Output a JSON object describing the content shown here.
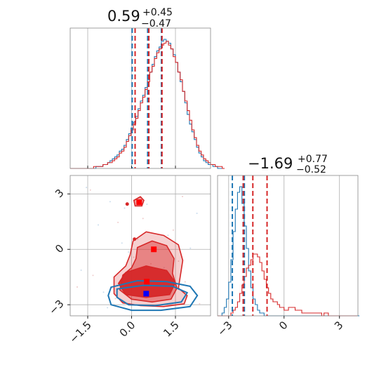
{
  "chart_data": {
    "type": "corner",
    "colors": {
      "series_a": "#d62728",
      "series_b": "#1f77b4",
      "truth_a": "#ff0000",
      "truth_b": "#0000ff"
    },
    "titles": [
      {
        "value": "0.59",
        "plus": "+0.45",
        "minus": "−0.47"
      },
      {
        "value": "−1.69",
        "plus": "+0.77",
        "minus": "−0.52"
      }
    ],
    "param1": {
      "range": [
        -2.1,
        2.7
      ],
      "ticks": [
        -1.5,
        0.0,
        1.5
      ],
      "tick_labels": [
        "−1.5",
        "0.0",
        "1.5"
      ]
    },
    "param2": {
      "range": [
        -3.6,
        4.0
      ],
      "ticks": [
        -3,
        0,
        3
      ],
      "tick_labels": [
        "−3",
        "0",
        "3"
      ]
    },
    "marginal1": {
      "bin_start": -2.1,
      "bin_width": 0.08,
      "red_counts": [
        0,
        0,
        0,
        0,
        0,
        0,
        0,
        0,
        0,
        0,
        1,
        1,
        1,
        1,
        2,
        2,
        3,
        3,
        4,
        5,
        6,
        8,
        9,
        11,
        14,
        17,
        20,
        23,
        26,
        30,
        34,
        37,
        41,
        45,
        50,
        53,
        57,
        60,
        62,
        64,
        65,
        66,
        64,
        62,
        58,
        55,
        50,
        46,
        40,
        35,
        30,
        25,
        20,
        16,
        12,
        9,
        7,
        5,
        4,
        3,
        2,
        2,
        1,
        1,
        1,
        0
      ],
      "blue_counts": [
        0,
        0,
        0,
        0,
        0,
        0,
        0,
        0,
        0,
        0,
        0,
        1,
        1,
        1,
        2,
        2,
        3,
        4,
        5,
        6,
        7,
        9,
        10,
        12,
        15,
        18,
        21,
        24,
        27,
        31,
        35,
        38,
        42,
        46,
        50,
        54,
        58,
        61,
        63,
        66,
        67,
        66,
        65,
        62,
        59,
        55,
        50,
        45,
        40,
        34,
        28,
        23,
        19,
        15,
        11,
        8,
        6,
        4,
        3,
        2,
        2,
        1,
        1,
        0,
        0,
        0
      ],
      "red_quantiles": [
        0.12,
        0.59,
        1.04
      ],
      "blue_quantiles": [
        0.02,
        0.55,
        1.02
      ]
    },
    "marginal2": {
      "bin_start": -3.6,
      "bin_width": 0.12,
      "red_counts": [
        0,
        0,
        0,
        0,
        0,
        0,
        1,
        2,
        3,
        5,
        8,
        11,
        14,
        17,
        18,
        20,
        22,
        22,
        21,
        19,
        16,
        13,
        10,
        8,
        6,
        5,
        5,
        4,
        3,
        3,
        2,
        2,
        3,
        3,
        3,
        2,
        2,
        2,
        1,
        1,
        1,
        1,
        1,
        1,
        1,
        1,
        1,
        0,
        1,
        1,
        0,
        0,
        0,
        0,
        0,
        0,
        0,
        0,
        0,
        0,
        0,
        0,
        0
      ],
      "blue_counts": [
        0,
        0,
        1,
        3,
        6,
        12,
        20,
        30,
        38,
        44,
        46,
        40,
        32,
        24,
        16,
        10,
        6,
        4,
        2,
        1,
        1,
        0,
        0,
        0,
        0,
        0,
        0,
        0,
        0,
        0,
        0,
        0,
        0,
        0,
        0,
        0,
        0,
        0,
        0,
        0,
        0,
        0,
        0,
        0,
        0,
        0,
        0,
        0,
        0,
        0,
        0,
        0,
        0,
        0,
        0,
        0,
        0,
        0,
        0,
        0,
        0,
        0,
        0,
        0
      ],
      "red_quantiles": [
        -2.21,
        -1.69,
        -0.92
      ],
      "blue_quantiles": [
        -2.8,
        -2.21,
        -2.15
      ]
    },
    "joint": {
      "red_contours": [
        [
          [
            0.05,
            0.45
          ],
          [
            0.5,
            0.95
          ],
          [
            1.1,
            0.75
          ],
          [
            1.6,
            0.25
          ],
          [
            1.75,
            -0.6
          ],
          [
            1.65,
            -1.6
          ],
          [
            1.6,
            -2.1
          ],
          [
            1.9,
            -2.5
          ],
          [
            1.8,
            -2.95
          ],
          [
            1.1,
            -3.1
          ],
          [
            0.3,
            -3.05
          ],
          [
            -0.3,
            -2.9
          ],
          [
            -0.6,
            -2.4
          ],
          [
            -0.6,
            -1.5
          ],
          [
            -0.2,
            -0.9
          ],
          [
            -0.05,
            -0.3
          ]
        ],
        [
          [
            0.2,
            0.1
          ],
          [
            0.7,
            0.45
          ],
          [
            1.2,
            0.2
          ],
          [
            1.45,
            -0.5
          ],
          [
            1.4,
            -1.3
          ],
          [
            1.55,
            -2.1
          ],
          [
            1.35,
            -2.7
          ],
          [
            0.7,
            -2.85
          ],
          [
            0.0,
            -2.7
          ],
          [
            -0.4,
            -2.2
          ],
          [
            -0.3,
            -1.4
          ],
          [
            0.0,
            -1.0
          ],
          [
            0.15,
            -0.5
          ]
        ],
        [
          [
            -0.2,
            -1.25
          ],
          [
            0.5,
            -0.9
          ],
          [
            1.2,
            -1.15
          ],
          [
            1.5,
            -1.8
          ],
          [
            1.3,
            -2.45
          ],
          [
            0.5,
            -2.6
          ],
          [
            -0.2,
            -2.45
          ],
          [
            -0.45,
            -1.85
          ]
        ]
      ],
      "red_island": [
        [
          0.08,
          2.65
        ],
        [
          0.3,
          2.85
        ],
        [
          0.42,
          2.65
        ],
        [
          0.35,
          2.35
        ],
        [
          0.12,
          2.35
        ]
      ],
      "red_dots": [
        [
          -0.15,
          2.45
        ],
        [
          0.1,
          0.55
        ]
      ],
      "blue_contours": [
        [
          [
            -0.7,
            -2.05
          ],
          [
            0.2,
            -1.7
          ],
          [
            1.2,
            -1.75
          ],
          [
            2.0,
            -2.0
          ],
          [
            2.25,
            -2.5
          ],
          [
            2.0,
            -3.1
          ],
          [
            1.0,
            -3.3
          ],
          [
            0.0,
            -3.3
          ],
          [
            -0.7,
            -3.0
          ],
          [
            -0.8,
            -2.5
          ]
        ],
        [
          [
            -0.5,
            -2.15
          ],
          [
            0.4,
            -1.95
          ],
          [
            1.4,
            -2.0
          ],
          [
            1.9,
            -2.35
          ],
          [
            1.7,
            -2.85
          ],
          [
            0.8,
            -3.05
          ],
          [
            -0.1,
            -3.0
          ],
          [
            -0.5,
            -2.6
          ]
        ]
      ],
      "truth_points": [
        {
          "color": "#ff0000",
          "x": 0.26,
          "y": 2.55
        },
        {
          "color": "#ff0000",
          "x": 0.76,
          "y": 0.0
        },
        {
          "color": "#ff0000",
          "x": 0.52,
          "y": -1.75
        },
        {
          "color": "#0000ff",
          "x": 0.5,
          "y": -2.4
        }
      ]
    }
  }
}
